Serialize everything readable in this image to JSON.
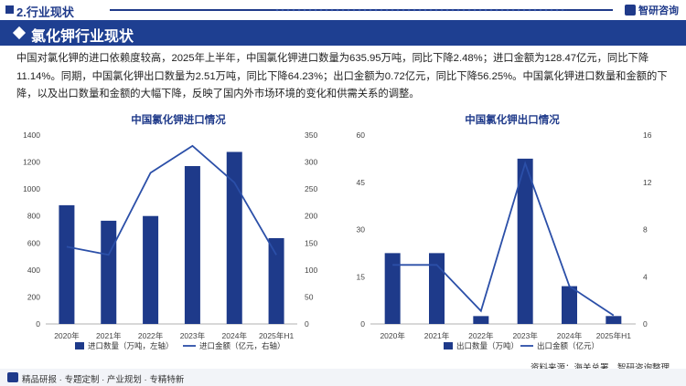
{
  "header": {
    "section": "2.行业现状",
    "brand": "智研咨询"
  },
  "banner": {
    "title": "氯化钾行业现状"
  },
  "paragraph": "中国对氯化钾的进口依赖度较高，2025年上半年，中国氯化钾进口数量为635.95万吨，同比下降2.48%；进口金额为128.47亿元，同比下降11.14%。同期，中国氯化钾出口数量为2.51万吨，同比下降64.23%；出口金额为0.72亿元，同比下降56.25%。中国氯化钾进口数量和金额的下降，以及出口数量和金额的大幅下降，反映了国内外市场环境的变化和供需关系的调整。",
  "footer": {
    "slogan": "精品研报 · 专题定制 · 产业规划 · 专精特新",
    "source": "资料来源：海关总署、智研咨询整理"
  },
  "colors": {
    "bar": "#1e3a8a",
    "line": "#2b4fa8",
    "banner": "#1e3f91"
  },
  "chart_data": [
    {
      "type": "bar+line",
      "title": "中国氯化钾进口情况",
      "categories": [
        "2020年",
        "2021年",
        "2022年",
        "2023年",
        "2024年",
        "2025年H1"
      ],
      "series": [
        {
          "name": "进口数量（万吨，左轴）",
          "type": "bar",
          "axis": "left",
          "values": [
            880,
            765,
            800,
            1170,
            1275,
            636
          ]
        },
        {
          "name": "进口金额（亿元，右轴）",
          "type": "line",
          "axis": "right",
          "values": [
            143,
            128,
            280,
            330,
            262,
            128
          ]
        }
      ],
      "left_axis": {
        "min": 0,
        "max": 1400,
        "ticks": [
          0,
          200,
          400,
          600,
          800,
          1000,
          1200,
          1400
        ]
      },
      "right_axis": {
        "min": 0,
        "max": 350,
        "ticks": [
          0,
          50,
          100,
          150,
          200,
          250,
          300,
          350
        ]
      },
      "legend": "bottom"
    },
    {
      "type": "bar+line",
      "title": "中国氯化钾出口情况",
      "categories": [
        "2020年",
        "2021年",
        "2022年",
        "2023年",
        "2024年",
        "2025年H1"
      ],
      "series": [
        {
          "name": "出口数量（万吨）",
          "type": "bar",
          "axis": "left",
          "values": [
            22.5,
            22.5,
            2.5,
            52.5,
            12,
            2.51
          ]
        },
        {
          "name": "出口金额（亿元）",
          "type": "line",
          "axis": "right",
          "values": [
            5,
            5,
            1.1,
            13.6,
            3.2,
            0.72
          ]
        }
      ],
      "left_axis": {
        "min": 0,
        "max": 60,
        "ticks": [
          0,
          15,
          30,
          45,
          60
        ]
      },
      "right_axis": {
        "min": 0,
        "max": 16,
        "ticks": [
          0,
          4,
          8,
          12,
          16
        ]
      },
      "legend": "bottom"
    }
  ]
}
